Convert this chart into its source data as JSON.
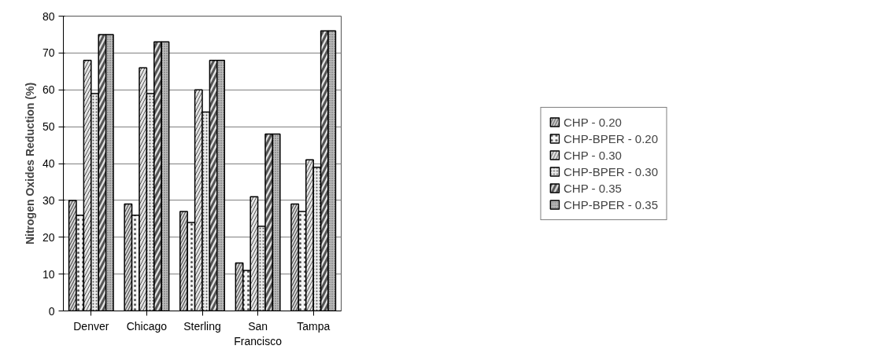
{
  "chart_data": {
    "type": "bar",
    "ylabel": "Nitrogen Oxides Reduction (%)",
    "categories": [
      "Denver",
      "Chicago",
      "Sterling",
      "San Francisco",
      "Tampa"
    ],
    "series": [
      {
        "name": "CHP - 0.20",
        "color": "#d8d8d8",
        "values": [
          30,
          29,
          27,
          13,
          29
        ]
      },
      {
        "name": "CHP-BPER - 0.20",
        "color": "#f4f4f4",
        "values": [
          26,
          26,
          24,
          11,
          27
        ]
      },
      {
        "name": "CHP - 0.30",
        "color": "#e4e4e4",
        "values": [
          68,
          66,
          60,
          31,
          41
        ]
      },
      {
        "name": "CHP-BPER - 0.30",
        "color": "#ececec",
        "values": [
          59,
          59,
          54,
          23,
          39
        ]
      },
      {
        "name": "CHP - 0.35",
        "color": "#e0e0e0",
        "values": [
          75,
          73,
          68,
          48,
          76
        ]
      },
      {
        "name": "CHP-BPER - 0.35",
        "color": "#bdbdbd",
        "values": [
          75,
          73,
          68,
          48,
          76
        ]
      }
    ],
    "ylim": [
      0,
      80
    ],
    "yticks": [
      0,
      10,
      20,
      30,
      40,
      50,
      60,
      70,
      80
    ],
    "grid": "y",
    "legend": "right"
  }
}
